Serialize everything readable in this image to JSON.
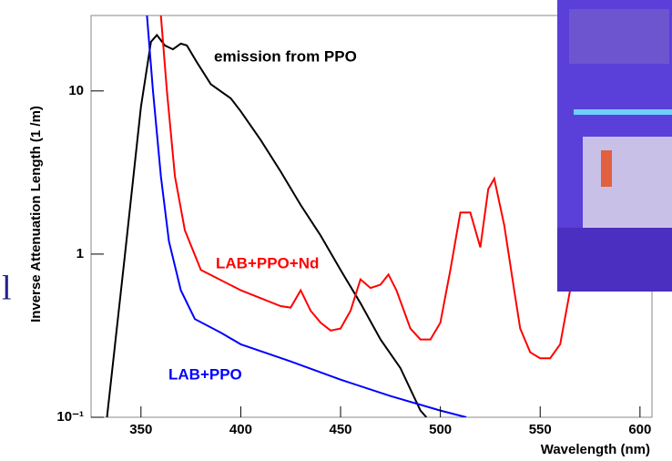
{
  "chart_data": {
    "type": "line",
    "ylabel": "Inverse Attenuation Length (1 /m)",
    "xlabel": "Wavelength (nm)",
    "side_text": "l",
    "xlim": [
      325,
      606
    ],
    "ylim": [
      0.1,
      29
    ],
    "log_y": true,
    "xticks": [
      350,
      400,
      450,
      500,
      550,
      600
    ],
    "yticks": [
      {
        "value": 0.1,
        "label": "10⁻¹"
      },
      1,
      10
    ],
    "series": [
      {
        "name": "emission from PPO",
        "color": "#000000",
        "x": [
          333,
          342,
          350,
          355,
          358,
          362,
          366,
          370,
          373,
          378,
          385,
          395,
          400,
          410,
          420,
          430,
          440,
          450,
          460,
          470,
          480,
          490,
          493
        ],
        "values": [
          0.1,
          1,
          8,
          20,
          22,
          19,
          18,
          19.5,
          19,
          15,
          11,
          9,
          7.5,
          5,
          3.2,
          2,
          1.3,
          0.8,
          0.5,
          0.3,
          0.2,
          0.11,
          0.1
        ]
      },
      {
        "name": "LAB+PPO+Nd",
        "color": "#ff0000",
        "x": [
          360,
          363,
          367,
          372,
          380,
          400,
          420,
          425,
          430,
          435,
          440,
          445,
          450,
          455,
          460,
          465,
          470,
          474,
          478,
          485,
          490,
          495,
          500,
          505,
          510,
          515,
          520,
          524,
          527,
          532,
          537,
          540,
          545,
          550,
          555,
          560,
          565
        ],
        "values": [
          29,
          10,
          3,
          1.4,
          0.8,
          0.6,
          0.48,
          0.47,
          0.6,
          0.45,
          0.38,
          0.34,
          0.35,
          0.45,
          0.7,
          0.62,
          0.65,
          0.75,
          0.6,
          0.35,
          0.3,
          0.3,
          0.38,
          0.8,
          1.8,
          1.8,
          1.1,
          2.5,
          2.9,
          1.5,
          0.6,
          0.35,
          0.25,
          0.23,
          0.23,
          0.28,
          0.6
        ]
      },
      {
        "name": "LAB+PPO",
        "color": "#0000ff",
        "x": [
          353,
          356,
          360,
          364,
          370,
          377,
          390,
          400,
          425,
          450,
          475,
          500,
          513
        ],
        "values": [
          29,
          10,
          3,
          1.2,
          0.6,
          0.4,
          0.33,
          0.28,
          0.22,
          0.17,
          0.135,
          0.11,
          0.1
        ]
      }
    ]
  }
}
